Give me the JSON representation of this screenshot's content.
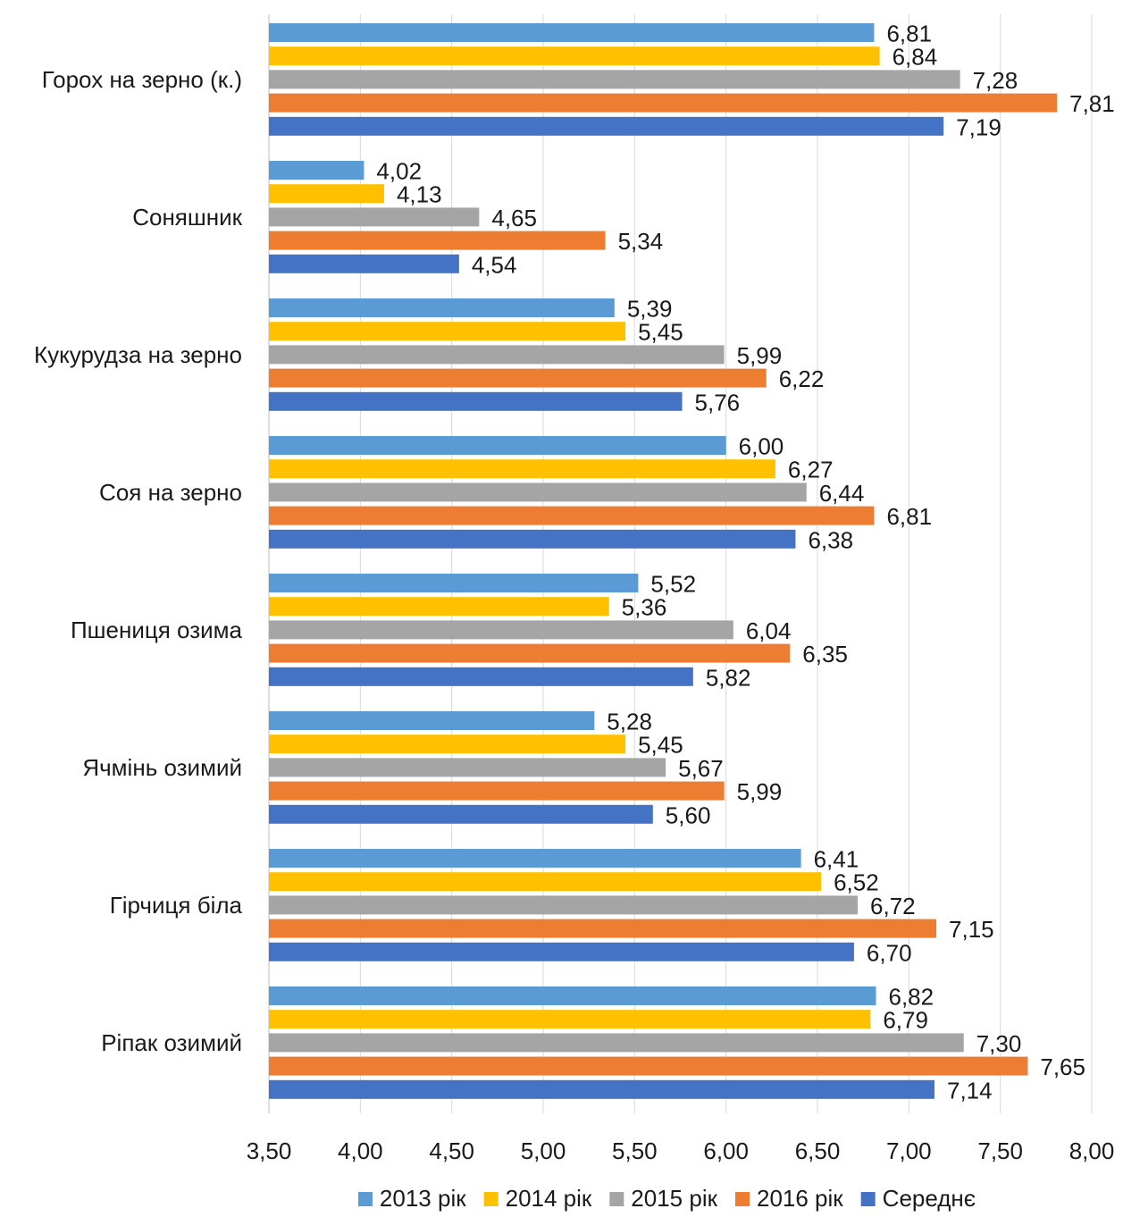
{
  "chart_data": {
    "type": "bar",
    "orientation": "horizontal",
    "categories": [
      "Горох на зерно (к.)",
      "Соняшник",
      "Кукурудза на зерно",
      "Соя на зерно",
      "Пшениця озима",
      "Ячмінь озимий",
      "Гірчиця біла",
      "Ріпак озимий"
    ],
    "series": [
      {
        "name": "2013 рік",
        "color": "#5B9BD5",
        "values": [
          6.81,
          4.02,
          5.39,
          6.0,
          5.52,
          5.28,
          6.41,
          6.82
        ]
      },
      {
        "name": "2014 рік",
        "color": "#FFC000",
        "values": [
          6.84,
          4.13,
          5.45,
          6.27,
          5.36,
          5.45,
          6.52,
          6.79
        ]
      },
      {
        "name": "2015 рік",
        "color": "#A5A5A5",
        "values": [
          7.28,
          4.65,
          5.99,
          6.44,
          6.04,
          5.67,
          6.72,
          7.3
        ]
      },
      {
        "name": "2016 рік",
        "color": "#ED7D31",
        "values": [
          7.81,
          5.34,
          6.22,
          6.81,
          6.35,
          5.99,
          7.15,
          7.65
        ]
      },
      {
        "name": "Середнє",
        "color": "#4472C4",
        "values": [
          7.19,
          4.54,
          5.76,
          6.38,
          5.82,
          5.6,
          6.7,
          7.14
        ]
      }
    ],
    "data_labels": [
      [
        "6,81",
        "6,84",
        "7,28",
        "7,81",
        "7,19"
      ],
      [
        "4,02",
        "4,13",
        "4,65",
        "5,34",
        "4,54"
      ],
      [
        "5,39",
        "5,45",
        "5,99",
        "6,22",
        "5,76"
      ],
      [
        "6,00",
        "6,27",
        "6,44",
        "6,81",
        "6,38"
      ],
      [
        "5,52",
        "5,36",
        "6,04",
        "6,35",
        "5,82"
      ],
      [
        "5,28",
        "5,45",
        "5,67",
        "5,99",
        "5,60"
      ],
      [
        "6,41",
        "6,52",
        "6,72",
        "7,15",
        "6,70"
      ],
      [
        "6,82",
        "6,79",
        "7,30",
        "7,65",
        "7,14"
      ]
    ],
    "xlim": [
      3.5,
      8.0
    ],
    "x_ticks": [
      3.5,
      4.0,
      4.5,
      5.0,
      5.5,
      6.0,
      6.5,
      7.0,
      7.5,
      8.0
    ],
    "x_tick_labels": [
      "3,50",
      "4,00",
      "4,50",
      "5,00",
      "5,50",
      "6,00",
      "6,50",
      "7,00",
      "7,50",
      "8,00"
    ],
    "grid": true,
    "legend_position": "bottom",
    "title": "",
    "xlabel": "",
    "ylabel": ""
  }
}
